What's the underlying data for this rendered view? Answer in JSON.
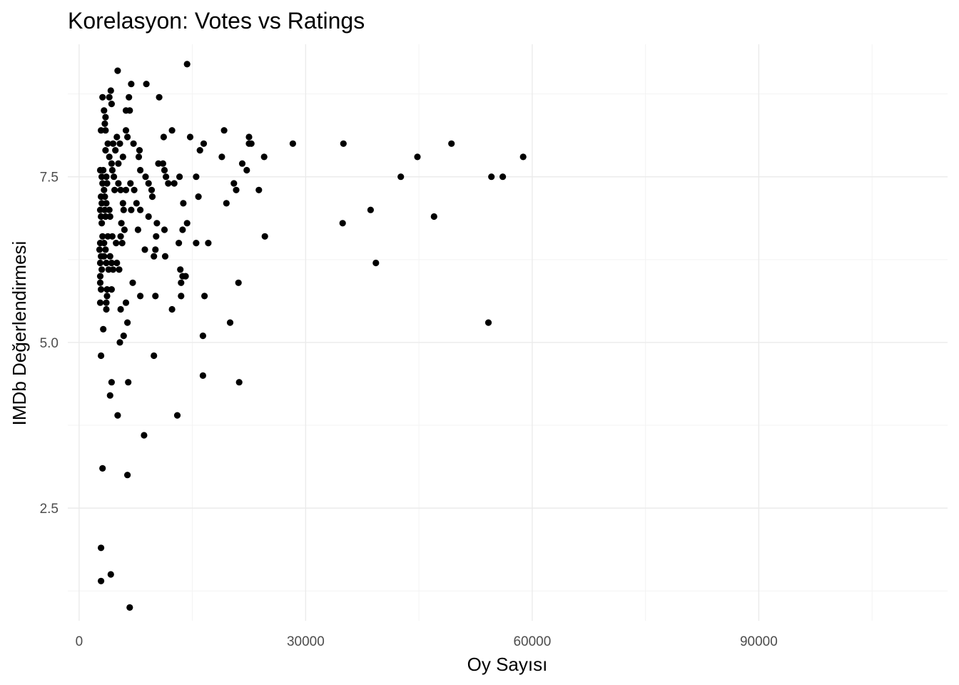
{
  "chart_data": {
    "type": "scatter",
    "title": "Korelasyon: Votes vs Ratings",
    "xlabel": "Oy Sayısı",
    "ylabel": "IMDb Değerlendirmesi",
    "xlim": [
      -1500,
      115000
    ],
    "ylim": [
      0.8,
      9.5
    ],
    "x_ticks": [
      0,
      30000,
      60000,
      90000
    ],
    "x_tick_labels": [
      "0",
      "30000",
      "60000",
      "90000"
    ],
    "y_ticks": [
      2.5,
      5.0,
      7.5
    ],
    "y_tick_labels": [
      "2.5",
      "5.0",
      "7.5"
    ],
    "grid": true,
    "legend": "none",
    "point_color": "#000000",
    "points": [
      [
        5100,
        9.1
      ],
      [
        14300,
        9.2
      ],
      [
        4200,
        8.8
      ],
      [
        6900,
        8.9
      ],
      [
        8900,
        8.9
      ],
      [
        3100,
        8.7
      ],
      [
        4000,
        8.7
      ],
      [
        6600,
        8.7
      ],
      [
        10600,
        8.7
      ],
      [
        4300,
        8.6
      ],
      [
        3300,
        8.5
      ],
      [
        6200,
        8.5
      ],
      [
        6700,
        8.5
      ],
      [
        3500,
        8.4
      ],
      [
        3400,
        8.3
      ],
      [
        2900,
        8.2
      ],
      [
        3500,
        8.2
      ],
      [
        6200,
        8.2
      ],
      [
        12300,
        8.2
      ],
      [
        19200,
        8.2
      ],
      [
        5000,
        8.1
      ],
      [
        6400,
        8.1
      ],
      [
        11200,
        8.1
      ],
      [
        14700,
        8.1
      ],
      [
        22500,
        8.1
      ],
      [
        3800,
        8.0
      ],
      [
        4500,
        8.0
      ],
      [
        5400,
        8.0
      ],
      [
        7200,
        8.0
      ],
      [
        16500,
        8.0
      ],
      [
        22500,
        8.0
      ],
      [
        22800,
        8.0
      ],
      [
        28300,
        8.0
      ],
      [
        35000,
        8.0
      ],
      [
        49300,
        8.0
      ],
      [
        3500,
        7.9
      ],
      [
        4800,
        7.9
      ],
      [
        8000,
        7.9
      ],
      [
        16000,
        7.9
      ],
      [
        4000,
        7.8
      ],
      [
        5800,
        7.8
      ],
      [
        7900,
        7.8
      ],
      [
        18900,
        7.8
      ],
      [
        24500,
        7.8
      ],
      [
        44800,
        7.8
      ],
      [
        58800,
        7.8
      ],
      [
        4300,
        7.7
      ],
      [
        5200,
        7.7
      ],
      [
        10500,
        7.7
      ],
      [
        11100,
        7.7
      ],
      [
        21600,
        7.7
      ],
      [
        2800,
        7.6
      ],
      [
        3200,
        7.6
      ],
      [
        4400,
        7.6
      ],
      [
        8100,
        7.6
      ],
      [
        11300,
        7.6
      ],
      [
        22200,
        7.6
      ],
      [
        3000,
        7.5
      ],
      [
        3600,
        7.5
      ],
      [
        4600,
        7.5
      ],
      [
        8800,
        7.5
      ],
      [
        11500,
        7.5
      ],
      [
        13300,
        7.5
      ],
      [
        15500,
        7.5
      ],
      [
        42600,
        7.5
      ],
      [
        54600,
        7.5
      ],
      [
        56100,
        7.5
      ],
      [
        3100,
        7.4
      ],
      [
        3700,
        7.4
      ],
      [
        5200,
        7.4
      ],
      [
        6800,
        7.4
      ],
      [
        9200,
        7.4
      ],
      [
        11800,
        7.4
      ],
      [
        12600,
        7.4
      ],
      [
        20500,
        7.4
      ],
      [
        3300,
        7.3
      ],
      [
        4700,
        7.3
      ],
      [
        5500,
        7.3
      ],
      [
        6200,
        7.3
      ],
      [
        7300,
        7.3
      ],
      [
        9600,
        7.3
      ],
      [
        20800,
        7.3
      ],
      [
        23800,
        7.3
      ],
      [
        2900,
        7.2
      ],
      [
        3400,
        7.2
      ],
      [
        9700,
        7.2
      ],
      [
        15800,
        7.2
      ],
      [
        3000,
        7.1
      ],
      [
        3600,
        7.1
      ],
      [
        5800,
        7.1
      ],
      [
        7600,
        7.1
      ],
      [
        13800,
        7.1
      ],
      [
        19500,
        7.1
      ],
      [
        2800,
        7.0
      ],
      [
        3400,
        7.0
      ],
      [
        4000,
        7.0
      ],
      [
        5900,
        7.0
      ],
      [
        6900,
        7.0
      ],
      [
        8100,
        7.0
      ],
      [
        38600,
        7.0
      ],
      [
        2900,
        6.9
      ],
      [
        3500,
        6.9
      ],
      [
        4100,
        6.9
      ],
      [
        9200,
        6.9
      ],
      [
        47000,
        6.9
      ],
      [
        3000,
        6.8
      ],
      [
        5600,
        6.8
      ],
      [
        10300,
        6.8
      ],
      [
        14300,
        6.8
      ],
      [
        34900,
        6.8
      ],
      [
        6000,
        6.7
      ],
      [
        7800,
        6.7
      ],
      [
        11300,
        6.7
      ],
      [
        13700,
        6.7
      ],
      [
        3100,
        6.6
      ],
      [
        3800,
        6.6
      ],
      [
        4400,
        6.6
      ],
      [
        5500,
        6.6
      ],
      [
        10200,
        6.6
      ],
      [
        24600,
        6.6
      ],
      [
        2800,
        6.5
      ],
      [
        3300,
        6.5
      ],
      [
        4900,
        6.5
      ],
      [
        5700,
        6.5
      ],
      [
        13200,
        6.5
      ],
      [
        15500,
        6.5
      ],
      [
        17100,
        6.5
      ],
      [
        2700,
        6.4
      ],
      [
        3500,
        6.4
      ],
      [
        8700,
        6.4
      ],
      [
        10100,
        6.4
      ],
      [
        2900,
        6.3
      ],
      [
        3300,
        6.3
      ],
      [
        4100,
        6.3
      ],
      [
        9900,
        6.3
      ],
      [
        11400,
        6.3
      ],
      [
        2800,
        6.2
      ],
      [
        3600,
        6.2
      ],
      [
        4300,
        6.2
      ],
      [
        5000,
        6.2
      ],
      [
        39300,
        6.2
      ],
      [
        3000,
        6.1
      ],
      [
        3900,
        6.1
      ],
      [
        4500,
        6.1
      ],
      [
        5300,
        6.1
      ],
      [
        13400,
        6.1
      ],
      [
        2800,
        6.0
      ],
      [
        13700,
        6.0
      ],
      [
        14100,
        6.0
      ],
      [
        2800,
        5.9
      ],
      [
        7100,
        5.9
      ],
      [
        13500,
        5.9
      ],
      [
        21100,
        5.9
      ],
      [
        2900,
        5.8
      ],
      [
        3700,
        5.8
      ],
      [
        4300,
        5.8
      ],
      [
        8100,
        5.7
      ],
      [
        10100,
        5.7
      ],
      [
        13500,
        5.7
      ],
      [
        16600,
        5.7
      ],
      [
        3700,
        5.7
      ],
      [
        2800,
        5.6
      ],
      [
        3600,
        5.6
      ],
      [
        6200,
        5.6
      ],
      [
        3600,
        5.5
      ],
      [
        5500,
        5.5
      ],
      [
        12300,
        5.5
      ],
      [
        6400,
        5.3
      ],
      [
        20000,
        5.3
      ],
      [
        54200,
        5.3
      ],
      [
        3200,
        5.2
      ],
      [
        5900,
        5.1
      ],
      [
        16400,
        5.1
      ],
      [
        5400,
        5.0
      ],
      [
        2900,
        4.8
      ],
      [
        9900,
        4.8
      ],
      [
        16400,
        4.5
      ],
      [
        4300,
        4.4
      ],
      [
        6500,
        4.4
      ],
      [
        21200,
        4.4
      ],
      [
        4100,
        4.2
      ],
      [
        5100,
        3.9
      ],
      [
        13000,
        3.9
      ],
      [
        8600,
        3.6
      ],
      [
        3100,
        3.1
      ],
      [
        6400,
        3.0
      ],
      [
        2900,
        1.9
      ],
      [
        2900,
        1.4
      ],
      [
        4200,
        1.5
      ],
      [
        6700,
        1.0
      ]
    ]
  }
}
